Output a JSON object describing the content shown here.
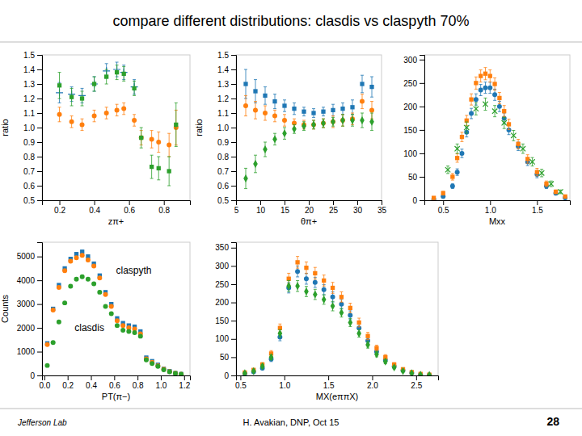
{
  "title": "compare different distributions: clasdis vs claspyth 70%",
  "annotations": [
    "Jefferson Lab",
    "H. Avakian, DNP,  Oct 15",
    "28"
  ],
  "chart_data": [
    {
      "type": "scatter",
      "xlabel": "zπ+",
      "ylabel": "ratio",
      "xlim": [
        0.1,
        0.95
      ],
      "ylim": [
        0.5,
        1.5
      ],
      "xticks": [
        0.2,
        0.4,
        0.6,
        0.8
      ],
      "yticks": [
        0.5,
        0.6,
        0.7,
        0.8,
        0.9,
        {
          "value": 1.0,
          "label": "1.0"
        },
        1.1,
        1.2,
        1.3,
        1.4,
        1.5
      ],
      "series": [
        {
          "marker": "plus",
          "x": [
            0.2,
            0.27,
            0.33,
            0.4,
            0.47,
            0.53,
            0.57,
            0.63
          ],
          "values": [
            1.24,
            1.23,
            1.22,
            1.3,
            1.39,
            1.4,
            1.38,
            1.28
          ],
          "errors": [
            0.07,
            0.05,
            0.05,
            0.05,
            0.05,
            0.05,
            0.05,
            0.05
          ]
        },
        {
          "marker": "circle",
          "x": [
            0.2,
            0.27,
            0.33,
            0.4,
            0.47,
            0.53,
            0.57,
            0.63,
            0.67,
            0.73,
            0.77,
            0.83,
            0.87
          ],
          "values": [
            1.09,
            1.04,
            1.02,
            1.08,
            1.1,
            1.12,
            1.13,
            1.05,
            0.93,
            0.92,
            0.9,
            0.88,
            1.0
          ],
          "errors": [
            0.05,
            0.04,
            0.04,
            0.04,
            0.04,
            0.04,
            0.04,
            0.04,
            0.05,
            0.06,
            0.07,
            0.08,
            0.12
          ]
        },
        {
          "marker": "square",
          "x": [
            0.2,
            0.27,
            0.33,
            0.4,
            0.47,
            0.53,
            0.57,
            0.63,
            0.67,
            0.73,
            0.77,
            0.83,
            0.87
          ],
          "values": [
            1.29,
            1.21,
            1.2,
            1.3,
            1.35,
            1.38,
            1.37,
            1.27,
            0.93,
            0.73,
            0.72,
            0.7,
            1.02
          ],
          "errors": [
            0.09,
            0.06,
            0.05,
            0.05,
            0.05,
            0.05,
            0.05,
            0.05,
            0.07,
            0.08,
            0.08,
            0.1,
            0.15
          ]
        }
      ]
    },
    {
      "type": "scatter",
      "xlabel": "θπ+",
      "ylabel": "ratio",
      "xlim": [
        5,
        35
      ],
      "ylim": [
        0.5,
        1.5
      ],
      "xticks": [
        5,
        10,
        15,
        20,
        25,
        30,
        35
      ],
      "yticks": [
        0.5,
        0.6,
        0.7,
        0.8,
        0.9,
        {
          "value": 1.0,
          "label": "1.0"
        },
        1.1,
        1.2,
        1.3,
        1.4,
        1.5
      ],
      "series": [
        {
          "marker": "square",
          "x": [
            7,
            9,
            11,
            13,
            15,
            17,
            19,
            21,
            23,
            25,
            27,
            29,
            31,
            33
          ],
          "values": [
            1.3,
            1.25,
            1.22,
            1.18,
            1.15,
            1.13,
            1.11,
            1.1,
            1.11,
            1.12,
            1.13,
            1.14,
            1.3,
            1.28
          ],
          "errors": [
            0.1,
            0.08,
            0.06,
            0.05,
            0.04,
            0.04,
            0.03,
            0.03,
            0.03,
            0.04,
            0.04,
            0.05,
            0.06,
            0.07
          ]
        },
        {
          "marker": "circle",
          "x": [
            7,
            9,
            11,
            13,
            15,
            17,
            19,
            21,
            23,
            25,
            27,
            29,
            31,
            33
          ],
          "values": [
            1.15,
            1.12,
            1.1,
            1.08,
            1.05,
            1.03,
            1.02,
            1.02,
            1.03,
            1.04,
            1.05,
            1.06,
            1.18,
            1.12
          ],
          "errors": [
            0.07,
            0.06,
            0.05,
            0.04,
            0.04,
            0.03,
            0.03,
            0.03,
            0.03,
            0.04,
            0.04,
            0.04,
            0.05,
            0.06
          ]
        },
        {
          "marker": "diamond",
          "x": [
            7,
            9,
            11,
            13,
            15,
            17,
            19,
            21,
            23,
            25,
            27,
            29,
            31,
            33
          ],
          "values": [
            0.65,
            0.75,
            0.85,
            0.92,
            0.96,
            0.99,
            1.01,
            1.02,
            1.03,
            1.04,
            1.05,
            1.05,
            1.05,
            1.04
          ],
          "errors": [
            0.07,
            0.06,
            0.05,
            0.04,
            0.04,
            0.03,
            0.03,
            0.03,
            0.03,
            0.03,
            0.04,
            0.04,
            0.05,
            0.06
          ]
        }
      ]
    },
    {
      "type": "scatter",
      "xlabel": "Mxx",
      "xlim": [
        0.3,
        1.85
      ],
      "ylim": [
        0,
        310
      ],
      "xticks": [
        0.5,
        {
          "value": 1.0,
          "label": "1.0"
        },
        1.5
      ],
      "yticks": [
        0,
        50,
        100,
        150,
        200,
        250,
        300
      ],
      "series": [
        {
          "marker": "circle",
          "x": [
            0.4,
            0.5,
            0.6,
            0.65,
            0.7,
            0.75,
            0.8,
            0.85,
            0.9,
            0.95,
            1.0,
            1.05,
            1.1,
            1.15,
            1.2,
            1.3,
            1.4,
            1.5,
            1.6,
            1.7,
            1.8
          ],
          "values": [
            2,
            8,
            30,
            60,
            100,
            145,
            185,
            215,
            235,
            240,
            240,
            225,
            200,
            175,
            150,
            115,
            82,
            55,
            30,
            15,
            5
          ],
          "errors": [
            1,
            3,
            5,
            7,
            9,
            10,
            11,
            12,
            12,
            12,
            12,
            12,
            11,
            11,
            10,
            9,
            8,
            7,
            5,
            4,
            2
          ]
        },
        {
          "marker": "square",
          "x": [
            0.4,
            0.5,
            0.6,
            0.65,
            0.7,
            0.75,
            0.8,
            0.85,
            0.9,
            0.95,
            1.0,
            1.05,
            1.1,
            1.15,
            1.2,
            1.3,
            1.4,
            1.5,
            1.6,
            1.7,
            1.8
          ],
          "values": [
            5,
            15,
            50,
            90,
            135,
            170,
            215,
            250,
            265,
            270,
            265,
            248,
            218,
            190,
            162,
            120,
            88,
            60,
            35,
            18,
            8
          ],
          "errors": [
            2,
            4,
            7,
            9,
            10,
            11,
            12,
            13,
            13,
            13,
            13,
            13,
            12,
            12,
            11,
            10,
            9,
            8,
            6,
            4,
            3
          ]
        },
        {
          "marker": "x",
          "x": [
            0.55,
            0.65,
            0.75,
            0.85,
            0.95,
            1.05,
            1.15,
            1.25,
            1.35,
            1.45,
            1.55,
            1.65,
            1.75
          ],
          "values": [
            65,
            110,
            155,
            195,
            205,
            190,
            165,
            138,
            110,
            82,
            58,
            35,
            18
          ],
          "errors": [
            8,
            10,
            12,
            13,
            13,
            12,
            12,
            11,
            10,
            9,
            8,
            6,
            4
          ]
        }
      ]
    },
    {
      "type": "scatter",
      "xlabel": "PT(π−)",
      "ylabel": "Counts",
      "annotations": [
        "claspyth",
        "clasdis"
      ],
      "xlim": [
        -0.02,
        1.25
      ],
      "ylim": [
        0,
        5600
      ],
      "xticks": [
        {
          "value": 0.0,
          "label": "0.0"
        },
        0.2,
        0.4,
        0.6,
        0.8,
        {
          "value": 1.0,
          "label": "1.0"
        },
        1.2
      ],
      "yticks": [
        0,
        1000,
        2000,
        3000,
        4000,
        5000
      ],
      "series": [
        {
          "marker": "square",
          "x": [
            0.025,
            0.075,
            0.125,
            0.175,
            0.225,
            0.275,
            0.325,
            0.375,
            0.425,
            0.475,
            0.525,
            0.575,
            0.625,
            0.675,
            0.725,
            0.775,
            0.825,
            0.875,
            0.925,
            0.975,
            1.025,
            1.075,
            1.125,
            1.175
          ],
          "values": [
            1350,
            2800,
            3800,
            4500,
            4900,
            5100,
            5200,
            5000,
            4700,
            4200,
            3500,
            3000,
            2400,
            2200,
            2100,
            2050,
            1850,
            750,
            600,
            450,
            280,
            180,
            100,
            60
          ],
          "errors": [
            30,
            45,
            55,
            60,
            62,
            64,
            65,
            63,
            61,
            58,
            53,
            48,
            44,
            42,
            41,
            40,
            38,
            24,
            22,
            19,
            15,
            12,
            9,
            7
          ]
        },
        {
          "marker": "circle",
          "x": [
            0.025,
            0.075,
            0.125,
            0.175,
            0.225,
            0.275,
            0.325,
            0.375,
            0.425,
            0.475,
            0.525,
            0.575,
            0.625,
            0.675,
            0.725,
            0.775,
            0.825,
            0.875,
            0.925,
            0.975,
            1.025,
            1.075,
            1.125,
            1.175
          ],
          "values": [
            1300,
            2750,
            3700,
            4400,
            4800,
            4950,
            5050,
            4850,
            4600,
            4100,
            3400,
            2900,
            2300,
            2100,
            2000,
            1950,
            1750,
            700,
            550,
            410,
            260,
            165,
            92,
            55
          ],
          "errors": [
            28,
            44,
            54,
            59,
            61,
            63,
            64,
            62,
            60,
            57,
            52,
            47,
            43,
            41,
            40,
            39,
            37,
            23,
            21,
            18,
            14,
            11,
            9,
            7
          ]
        },
        {
          "marker": "circle",
          "x": [
            0.025,
            0.075,
            0.125,
            0.175,
            0.225,
            0.275,
            0.325,
            0.375,
            0.425,
            0.475,
            0.525,
            0.575,
            0.625,
            0.675,
            0.725,
            0.775,
            0.825,
            0.875,
            0.925,
            0.975,
            1.025,
            1.075,
            1.125,
            1.175
          ],
          "values": [
            420,
            1380,
            2250,
            3050,
            3750,
            4050,
            4150,
            4050,
            3850,
            3500,
            2900,
            2600,
            2100,
            1900,
            1850,
            1800,
            1650,
            650,
            500,
            380,
            240,
            155,
            88,
            52
          ],
          "errors": [
            18,
            32,
            42,
            49,
            55,
            57,
            58,
            57,
            56,
            53,
            48,
            46,
            41,
            39,
            38,
            38,
            36,
            23,
            20,
            17,
            14,
            11,
            8,
            7
          ]
        }
      ]
    },
    {
      "type": "scatter",
      "xlabel": "MX(eππX)",
      "xlim": [
        0.45,
        2.75
      ],
      "ylim": [
        0,
        365
      ],
      "xticks": [
        0.5,
        {
          "value": 1.0,
          "label": "1.0"
        },
        1.5,
        {
          "value": 2.0,
          "label": "2.0"
        },
        2.5
      ],
      "yticks": [
        0,
        50,
        100,
        150,
        200,
        250,
        300,
        350
      ],
      "series": [
        {
          "marker": "circle",
          "x": [
            0.55,
            0.65,
            0.75,
            0.85,
            0.95,
            1.05,
            1.15,
            1.25,
            1.35,
            1.45,
            1.55,
            1.65,
            1.75,
            1.85,
            1.95,
            2.05,
            2.15,
            2.25,
            2.35,
            2.45,
            2.55,
            2.65
          ],
          "values": [
            5,
            10,
            20,
            45,
            105,
            240,
            285,
            265,
            255,
            235,
            215,
            195,
            165,
            130,
            95,
            65,
            42,
            25,
            14,
            7,
            3,
            1
          ],
          "errors": [
            2,
            3,
            4,
            7,
            10,
            14,
            15,
            15,
            14,
            14,
            14,
            13,
            12,
            11,
            9,
            7,
            6,
            5,
            4,
            3,
            2,
            1
          ]
        },
        {
          "marker": "square",
          "x": [
            0.55,
            0.65,
            0.75,
            0.85,
            0.95,
            1.05,
            1.15,
            1.25,
            1.35,
            1.45,
            1.55,
            1.65,
            1.75,
            1.85,
            1.95,
            2.05,
            2.15,
            2.25,
            2.35,
            2.45,
            2.55,
            2.65
          ],
          "values": [
            8,
            15,
            30,
            60,
            130,
            265,
            310,
            295,
            280,
            260,
            240,
            215,
            185,
            145,
            108,
            75,
            50,
            30,
            17,
            9,
            4,
            2
          ],
          "errors": [
            3,
            4,
            5,
            8,
            11,
            15,
            16,
            16,
            16,
            15,
            15,
            14,
            13,
            12,
            10,
            8,
            7,
            5,
            4,
            3,
            2,
            1
          ]
        },
        {
          "marker": "diamond",
          "x": [
            0.55,
            0.65,
            0.75,
            0.85,
            0.95,
            1.05,
            1.15,
            1.25,
            1.35,
            1.45,
            1.55,
            1.65,
            1.75,
            1.85,
            1.95,
            2.05,
            2.15,
            2.25,
            2.35,
            2.45,
            2.55,
            2.65
          ],
          "values": [
            6,
            12,
            25,
            50,
            115,
            245,
            245,
            230,
            222,
            208,
            190,
            172,
            145,
            115,
            84,
            58,
            38,
            22,
            12,
            6,
            2,
            1
          ],
          "errors": [
            2,
            3,
            5,
            7,
            10,
            15,
            15,
            14,
            14,
            13,
            13,
            12,
            11,
            10,
            9,
            7,
            6,
            4,
            3,
            2,
            1,
            1
          ]
        }
      ]
    }
  ]
}
